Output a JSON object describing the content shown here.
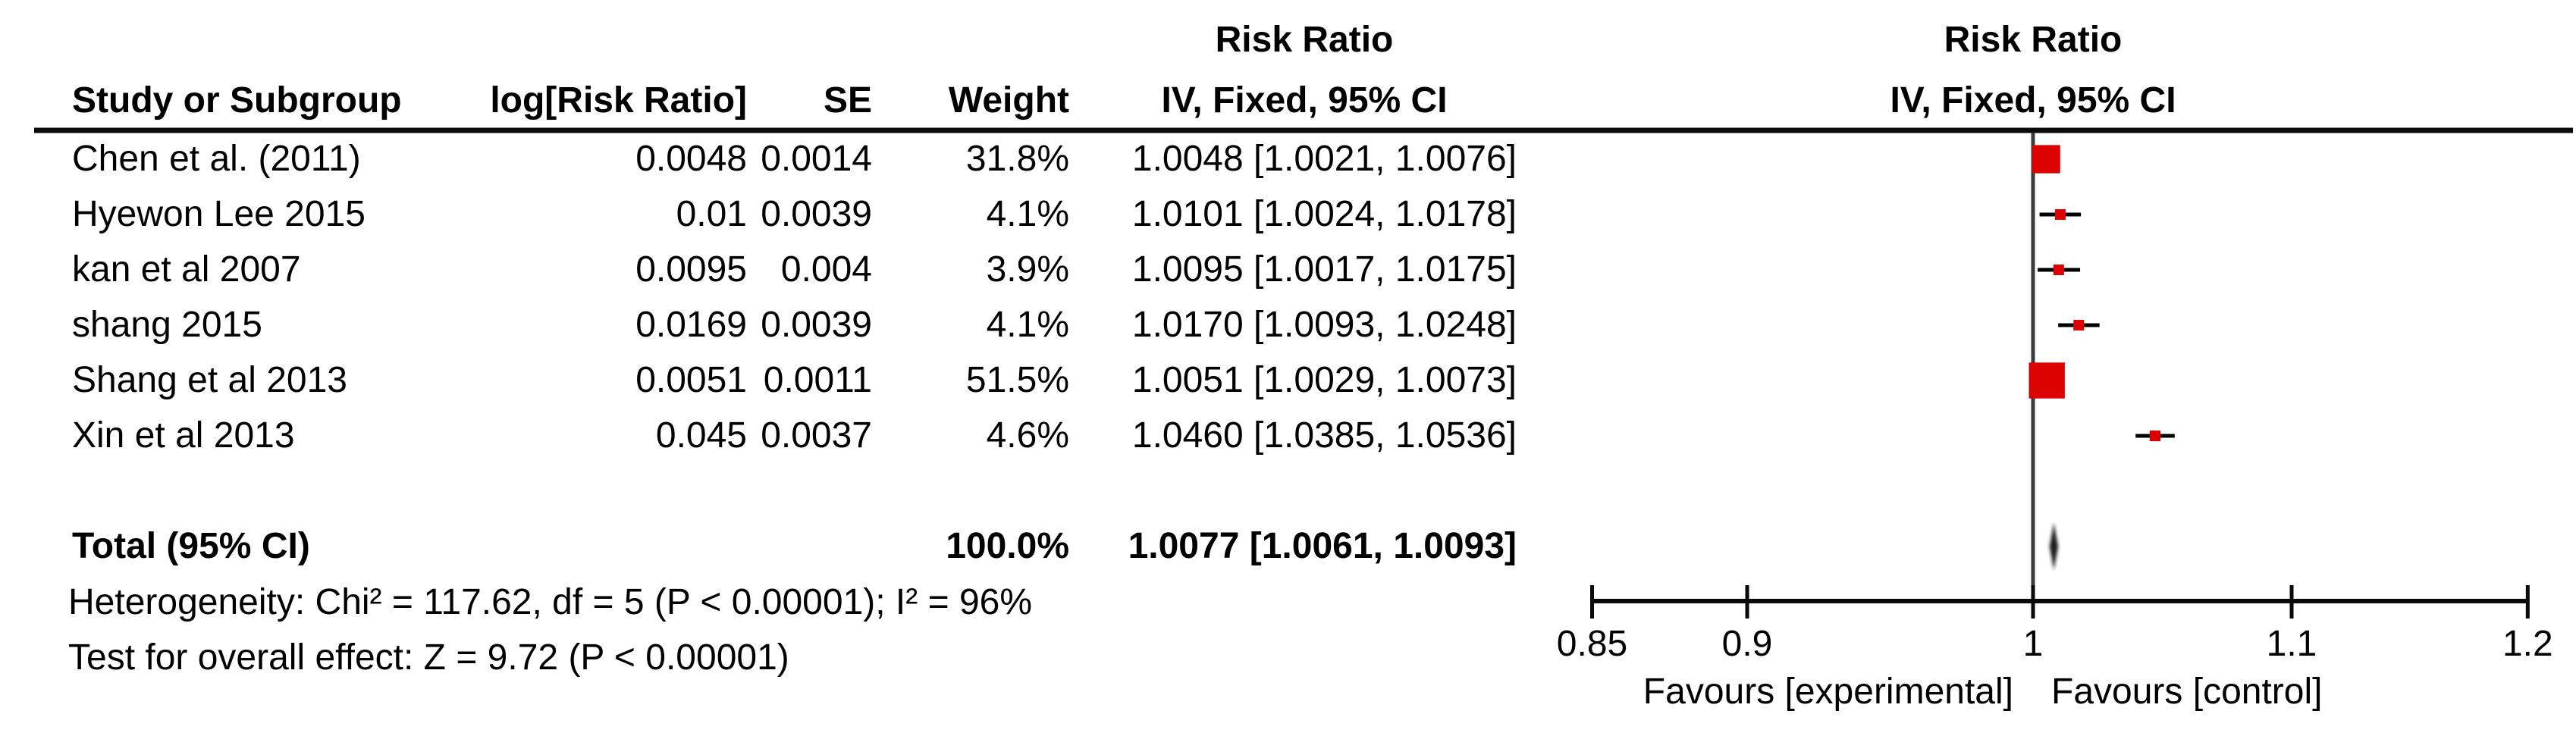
{
  "colors": {
    "marker_red": "#dd0202",
    "line_black": "#0a0a0a",
    "null_line_gray": "#3c3c3c",
    "diamond_black": "#1a1a1a"
  },
  "table": {
    "header_top": {
      "left_effect_label": "Risk Ratio",
      "right_plot_label": "Risk Ratio"
    },
    "columns": {
      "study": "Study or Subgroup",
      "log_rr": "log[Risk Ratio]",
      "se": "SE",
      "weight": "Weight",
      "ci_text": "IV, Fixed, 95% CI",
      "ci_plot": "IV, Fixed, 95% CI"
    },
    "rows": [
      {
        "study": "Chen et al. (2011)",
        "log_rr": "0.0048",
        "se": "0.0014",
        "weight": "31.8%",
        "ci": "1.0048 [1.0021, 1.0076]"
      },
      {
        "study": "Hyewon Lee 2015",
        "log_rr": "0.01",
        "se": "0.0039",
        "weight": "4.1%",
        "ci": "1.0101 [1.0024, 1.0178]"
      },
      {
        "study": "kan et al 2007",
        "log_rr": "0.0095",
        "se": "0.004",
        "weight": "3.9%",
        "ci": "1.0095 [1.0017, 1.0175]"
      },
      {
        "study": "shang 2015",
        "log_rr": "0.0169",
        "se": "0.0039",
        "weight": "4.1%",
        "ci": "1.0170 [1.0093, 1.0248]"
      },
      {
        "study": "Shang et al 2013",
        "log_rr": "0.0051",
        "se": "0.0011",
        "weight": "51.5%",
        "ci": "1.0051 [1.0029, 1.0073]"
      },
      {
        "study": "Xin et al 2013",
        "log_rr": "0.045",
        "se": "0.0037",
        "weight": "4.6%",
        "ci": "1.0460 [1.0385, 1.0536]"
      }
    ],
    "total": {
      "label": "Total (95% CI)",
      "weight": "100.0%",
      "ci": "1.0077 [1.0061, 1.0093]"
    },
    "heterogeneity": "Heterogeneity: Chi² = 117.62, df = 5 (P < 0.00001); I² = 96%",
    "overall_effect": "Test for overall effect: Z = 9.72 (P < 0.00001)"
  },
  "chart_data": {
    "type": "forest",
    "effect_measure": "Risk Ratio",
    "model": "IV, Fixed, 95% CI",
    "x_scale": "log",
    "xlim": [
      0.85,
      1.2
    ],
    "axis_ticks": [
      0.85,
      0.9,
      1,
      1.1,
      1.2
    ],
    "axis_tick_labels": [
      "0.85",
      "0.9",
      "1",
      "1.1",
      "1.2"
    ],
    "null_value": 1,
    "studies": [
      {
        "name": "Chen et al. (2011)",
        "rr": 1.0048,
        "ci_low": 1.0021,
        "ci_high": 1.0076,
        "weight_pct": 31.8
      },
      {
        "name": "Hyewon Lee 2015",
        "rr": 1.0101,
        "ci_low": 1.0024,
        "ci_high": 1.0178,
        "weight_pct": 4.1
      },
      {
        "name": "kan et al 2007",
        "rr": 1.0095,
        "ci_low": 1.0017,
        "ci_high": 1.0175,
        "weight_pct": 3.9
      },
      {
        "name": "shang 2015",
        "rr": 1.017,
        "ci_low": 1.0093,
        "ci_high": 1.0248,
        "weight_pct": 4.1
      },
      {
        "name": "Shang et al 2013",
        "rr": 1.0051,
        "ci_low": 1.0029,
        "ci_high": 1.0073,
        "weight_pct": 51.5
      },
      {
        "name": "Xin et al 2013",
        "rr": 1.046,
        "ci_low": 1.0385,
        "ci_high": 1.0536,
        "weight_pct": 4.6
      }
    ],
    "total": {
      "rr": 1.0077,
      "ci_low": 1.0061,
      "ci_high": 1.0093,
      "weight_pct": 100.0
    },
    "favours_left": "Favours [experimental]",
    "favours_right": "Favours [control]"
  }
}
